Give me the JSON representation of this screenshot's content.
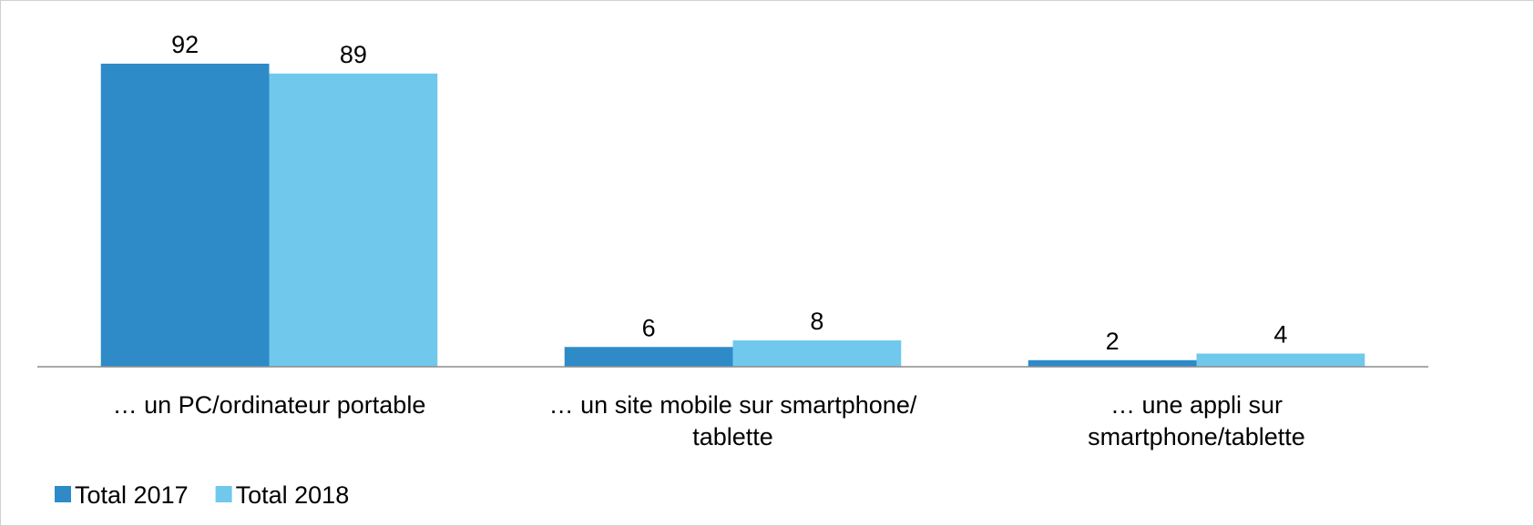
{
  "chart_data": {
    "type": "bar",
    "categories": [
      "… un PC/ordinateur portable",
      "… un site mobile sur smartphone/ tablette",
      "… une appli sur smartphone/tablette"
    ],
    "series": [
      {
        "name": "Total 2017",
        "color": "#2e8bc8",
        "values": [
          92,
          6,
          2
        ]
      },
      {
        "name": "Total 2018",
        "color": "#70c8ec",
        "values": [
          89,
          8,
          4
        ]
      }
    ],
    "ylim": [
      0,
      100
    ],
    "legend": "bottom-left"
  }
}
